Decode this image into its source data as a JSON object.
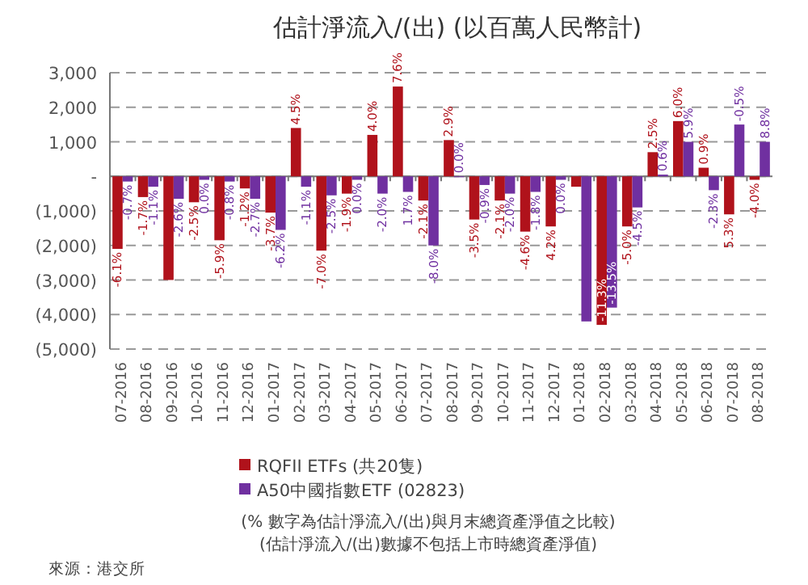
{
  "chart_data": {
    "type": "bar",
    "title": "估計淨流入/(出) (以百萬人民幣計)",
    "categories": [
      "07-2016",
      "08-2016",
      "09-2016",
      "10-2016",
      "11-2016",
      "12-2016",
      "01-2017",
      "02-2017",
      "03-2017",
      "04-2017",
      "05-2017",
      "06-2017",
      "07-2017",
      "08-2017",
      "09-2017",
      "10-2017",
      "11-2017",
      "12-2017",
      "01-2018",
      "02-2018",
      "03-2018",
      "04-2018",
      "05-2018",
      "06-2018",
      "07-2018",
      "08-2018"
    ],
    "series": [
      {
        "name": "RQFII ETFs (共20隻)",
        "color": "#b0121b",
        "values": [
          -2100,
          -600,
          -3000,
          -750,
          -1850,
          -350,
          -1050,
          1400,
          -2150,
          -500,
          1200,
          2600,
          -700,
          1050,
          -1250,
          -700,
          -1600,
          -1450,
          -300,
          -4300,
          -1450,
          700,
          1600,
          250,
          -1100,
          -100
        ]
      },
      {
        "name": "A50中國指數ETF (02823)",
        "color": "#7030a0",
        "values": [
          -150,
          -300,
          -650,
          -100,
          -150,
          -650,
          -1550,
          -300,
          -550,
          -100,
          -500,
          -450,
          -2000,
          0,
          -250,
          -500,
          -450,
          -100,
          -4200,
          -3800,
          -900,
          50,
          1000,
          -400,
          1500,
          1000
        ]
      }
    ],
    "ylim": [
      -5000,
      3000
    ],
    "yticks": [
      {
        "value": -5000,
        "label": "(5,000)"
      },
      {
        "value": -4000,
        "label": "(4,000)"
      },
      {
        "value": -3000,
        "label": "(3,000)"
      },
      {
        "value": -2000,
        "label": "(2,000)"
      },
      {
        "value": -1000,
        "label": "(1,000)"
      },
      {
        "value": 0,
        "label": "-"
      },
      {
        "value": 1000,
        "label": "1,000"
      },
      {
        "value": 2000,
        "label": "2,000"
      },
      {
        "value": 3000,
        "label": "3,000"
      }
    ],
    "grid": "y",
    "legend": "bottom",
    "annotations": [
      {
        "text": "-6.1%",
        "x": "07-2016",
        "y": -2100
      },
      {
        "text": "-0.7%",
        "x": "07-2016",
        "y": -150
      },
      {
        "text": "-1.7%",
        "x": "08-2016",
        "y": -600
      },
      {
        "text": "-1.1%",
        "x": "08-2016",
        "y": -300
      },
      {
        "text": "-2.6%",
        "x": "09-2016",
        "y": -650
      },
      {
        "text": "-2.5%",
        "x": "10-2016",
        "y": -750
      },
      {
        "text": "0.0%",
        "x": "10-2016",
        "y": -100
      },
      {
        "text": "-5.9%",
        "x": "11-2016",
        "y": -1850
      },
      {
        "text": "-0.8%",
        "x": "11-2016",
        "y": -150
      },
      {
        "text": "-1.2%",
        "x": "12-2016",
        "y": -350
      },
      {
        "text": "-2.7%",
        "x": "12-2016",
        "y": -650
      },
      {
        "text": "-3.7%",
        "x": "01-2017",
        "y": -1050
      },
      {
        "text": "-6.2%",
        "x": "01-2017",
        "y": -1550
      },
      {
        "text": "4.5%",
        "x": "02-2017",
        "y": 1400
      },
      {
        "text": "-1.1%",
        "x": "02-2017",
        "y": -300
      },
      {
        "text": "-7.0%",
        "x": "03-2017",
        "y": -2150
      },
      {
        "text": "-2.5%",
        "x": "03-2017",
        "y": -550
      },
      {
        "text": "-1.9%",
        "x": "04-2017",
        "y": -500
      },
      {
        "text": "0.0%",
        "x": "04-2017",
        "y": -100
      },
      {
        "text": "4.0%",
        "x": "05-2017",
        "y": 1200
      },
      {
        "text": "-2.0%",
        "x": "05-2017",
        "y": -500
      },
      {
        "text": "7.6%",
        "x": "06-2017",
        "y": 2600
      },
      {
        "text": "1.7%",
        "x": "06-2017",
        "y": -450
      },
      {
        "text": "-2.1%",
        "x": "07-2017",
        "y": -700
      },
      {
        "text": "-8.0%",
        "x": "07-2017",
        "y": -2000
      },
      {
        "text": "2.9%",
        "x": "08-2017",
        "y": 1050
      },
      {
        "text": "0.0%",
        "x": "08-2017",
        "y": 0
      },
      {
        "text": "-3.5%",
        "x": "09-2017",
        "y": -1250
      },
      {
        "text": "-0.9%",
        "x": "09-2017",
        "y": -250
      },
      {
        "text": "-2.1%",
        "x": "10-2017",
        "y": -700
      },
      {
        "text": "-2.0%",
        "x": "10-2017",
        "y": -500
      },
      {
        "text": "-4.6%",
        "x": "11-2017",
        "y": -1600
      },
      {
        "text": "-1.8%",
        "x": "11-2017",
        "y": -450
      },
      {
        "text": "4.2%",
        "x": "12-2017",
        "y": -1450
      },
      {
        "text": "0.0%",
        "x": "12-2017",
        "y": -100
      },
      {
        "text": "-11.3%",
        "x": "02-2018",
        "y": -4300
      },
      {
        "text": "-13.5%",
        "x": "02-2018",
        "y": -3800
      },
      {
        "text": "-5.0%",
        "x": "03-2018",
        "y": -1450
      },
      {
        "text": "-4.5%",
        "x": "03-2018",
        "y": -900
      },
      {
        "text": "2.5%",
        "x": "04-2018",
        "y": 700
      },
      {
        "text": "0.6%",
        "x": "04-2018",
        "y": 50
      },
      {
        "text": "6.0%",
        "x": "05-2018",
        "y": 1600
      },
      {
        "text": "5.9%",
        "x": "05-2018",
        "y": 1000
      },
      {
        "text": "0.9%",
        "x": "06-2018",
        "y": 250
      },
      {
        "text": "-2.3%",
        "x": "06-2018",
        "y": -400
      },
      {
        "text": "5.3%",
        "x": "07-2018",
        "y": -1100
      },
      {
        "text": "-0.5%",
        "x": "07-2018",
        "y": 1500
      },
      {
        "text": "-4.0%",
        "x": "08-2018",
        "y": -100
      },
      {
        "text": "8.8%",
        "x": "08-2018",
        "y": 1000
      },
      "(% 數字為估計淨流入/(出)與月末總資產淨值之比較)",
      "(估計淨流入/(出)數據不包括上市時總資產淨值)",
      "來源：港交所"
    ]
  }
}
